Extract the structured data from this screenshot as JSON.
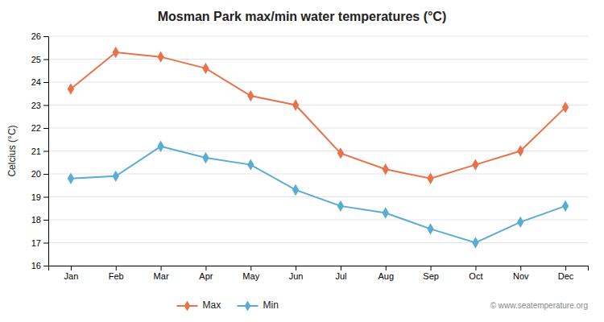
{
  "chart_data": {
    "type": "line",
    "title": "Mosman Park max/min water temperatures (°C)",
    "y_label": "Celcius (°C)",
    "categories": [
      "Jan",
      "Feb",
      "Mar",
      "Apr",
      "May",
      "Jun",
      "Jul",
      "Aug",
      "Sep",
      "Oct",
      "Nov",
      "Dec"
    ],
    "series": [
      {
        "name": "Max",
        "color": "#e8724a",
        "marker": "diamond",
        "values": [
          23.7,
          25.3,
          25.1,
          24.6,
          23.4,
          23.0,
          20.9,
          20.2,
          19.8,
          20.4,
          21.0,
          22.9
        ]
      },
      {
        "name": "Min",
        "color": "#5bacd4",
        "marker": "diamond",
        "values": [
          19.8,
          19.9,
          21.2,
          20.7,
          20.4,
          19.3,
          18.6,
          18.3,
          17.6,
          17.0,
          17.9,
          18.6
        ]
      }
    ],
    "ylim": [
      16,
      26
    ],
    "yticks": [
      16,
      17,
      18,
      19,
      20,
      21,
      22,
      23,
      24,
      25,
      26
    ],
    "grid": true,
    "legend": "bottom",
    "annotations": [
      "© www.seatemperature.org"
    ]
  }
}
